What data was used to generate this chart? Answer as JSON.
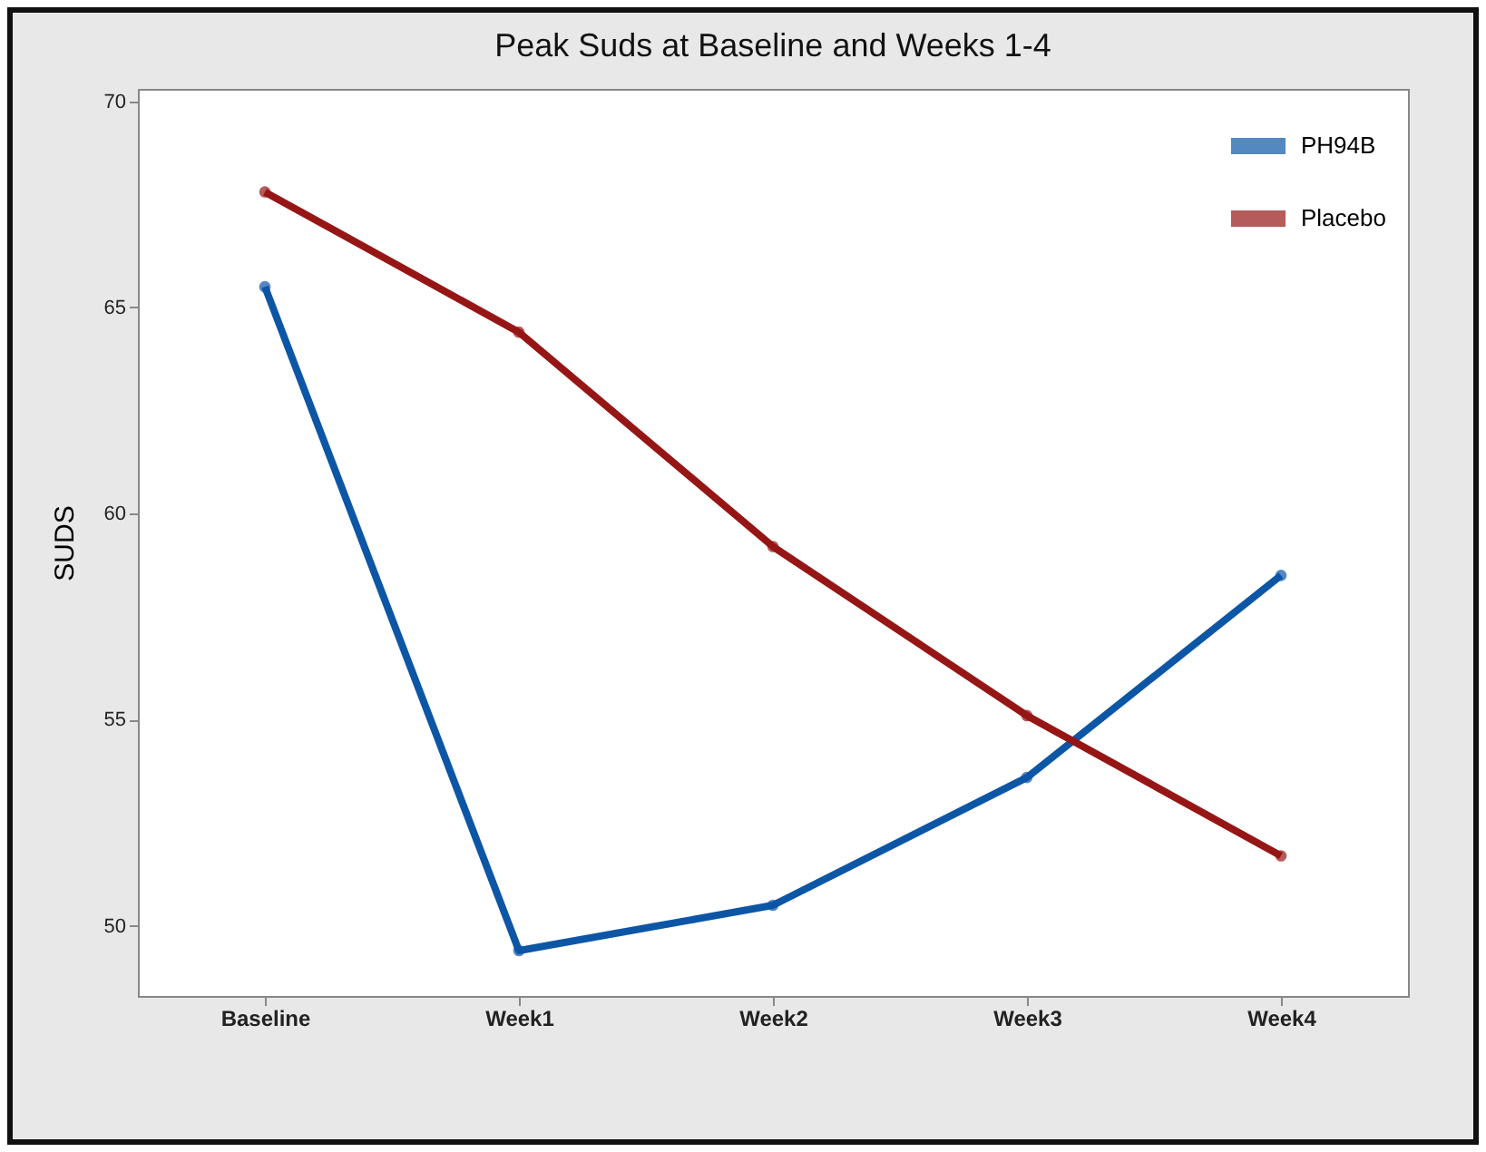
{
  "chart_data": {
    "type": "line",
    "title": "Peak Suds at Baseline and Weeks 1-4",
    "ylabel": "SUDS",
    "categories": [
      "Baseline",
      "Week1",
      "Week2",
      "Week3",
      "Week4"
    ],
    "series": [
      {
        "name": "PH94B",
        "color": "#0d56a6",
        "values": [
          65.5,
          49.4,
          50.5,
          53.6,
          58.5
        ]
      },
      {
        "name": "Placebo",
        "color": "#961616",
        "values": [
          67.8,
          64.4,
          59.2,
          55.1,
          51.7
        ]
      }
    ],
    "ylim": [
      48.3,
      70.3
    ],
    "yticks": [
      50,
      55,
      60,
      65,
      70
    ],
    "grid": false,
    "legend": "top right",
    "marker": "circle",
    "line_style": "solid"
  }
}
